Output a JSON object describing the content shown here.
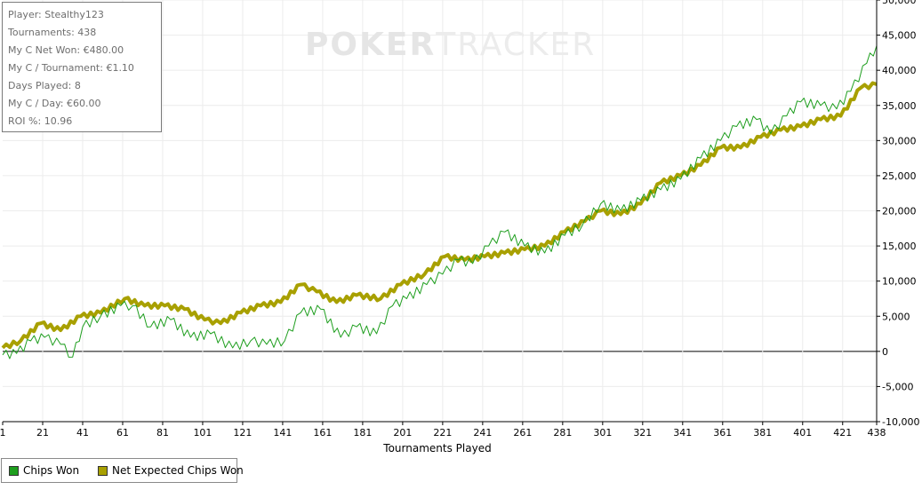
{
  "stats": [
    "Player: Stealthy123",
    "Tournaments: 438",
    "My C Net Won: €480.00",
    "My C / Tournament: €1.10",
    "Days Played: 8",
    "My C / Day: €60.00",
    "ROI %: 10.96"
  ],
  "watermark": {
    "part1": "POKER",
    "part2": "TRACKER"
  },
  "legend": [
    {
      "label": "Chips Won",
      "color": "#1e9e1e"
    },
    {
      "label": "Net Expected Chips Won",
      "color": "#a8a000"
    }
  ],
  "chart_data": {
    "type": "line",
    "xlabel": "Tournaments Played",
    "ylabel": "",
    "xlim": [
      1,
      438
    ],
    "ylim": [
      -10000,
      50000
    ],
    "x_ticks": [
      1,
      21,
      41,
      61,
      81,
      101,
      121,
      141,
      161,
      181,
      201,
      221,
      241,
      261,
      281,
      301,
      321,
      341,
      361,
      381,
      401,
      421,
      438
    ],
    "y_ticks": [
      -10000,
      -5000,
      0,
      5000,
      10000,
      15000,
      20000,
      25000,
      30000,
      35000,
      40000,
      45000,
      50000
    ],
    "y_tick_labels": [
      "-10,000",
      "-5,000",
      "0",
      "5,000",
      "10,000",
      "15,000",
      "20,000",
      "25,000",
      "30,000",
      "35,000",
      "40,000",
      "45,000",
      "50,000"
    ],
    "grid": true,
    "legend_position": "bottom-left",
    "series": [
      {
        "name": "Chips Won",
        "color": "#1e9e1e",
        "x": [
          1,
          8,
          15,
          22,
          30,
          36,
          41,
          50,
          60,
          66,
          75,
          85,
          95,
          105,
          116,
          125,
          133,
          142,
          150,
          160,
          170,
          178,
          188,
          196,
          203,
          213,
          221,
          229,
          236,
          244,
          252,
          262,
          272,
          282,
          291,
          300,
          310,
          320,
          330,
          340,
          350,
          360,
          368,
          378,
          385,
          393,
          400,
          410,
          418,
          425,
          433,
          438
        ],
        "y": [
          -500,
          -300,
          1500,
          2000,
          1000,
          -800,
          3500,
          5000,
          6500,
          6500,
          3500,
          4500,
          2000,
          2500,
          500,
          1500,
          1000,
          1500,
          5500,
          6000,
          2000,
          3500,
          2500,
          6500,
          7500,
          9500,
          11000,
          13000,
          12500,
          15000,
          17000,
          15000,
          14000,
          16500,
          18000,
          21000,
          20000,
          21500,
          23000,
          24500,
          27500,
          30000,
          32000,
          33000,
          31000,
          33500,
          35500,
          35000,
          34500,
          37000,
          41000,
          43500
        ]
      },
      {
        "name": "Net Expected Chips Won",
        "color": "#a8a000",
        "x": [
          1,
          10,
          20,
          30,
          40,
          50,
          62,
          72,
          82,
          92,
          102,
          110,
          120,
          130,
          140,
          150,
          158,
          168,
          178,
          190,
          200,
          212,
          222,
          232,
          242,
          252,
          262,
          272,
          282,
          292,
          300,
          310,
          320,
          330,
          340,
          350,
          360,
          370,
          380,
          390,
          400,
          410,
          420,
          430,
          438
        ],
        "y": [
          500,
          1500,
          4000,
          3000,
          5000,
          5500,
          7500,
          6500,
          6500,
          6000,
          4500,
          4000,
          5500,
          6500,
          7000,
          9500,
          8500,
          7000,
          8000,
          7500,
          9500,
          11000,
          13500,
          13000,
          13500,
          14000,
          14500,
          15000,
          17000,
          18500,
          20000,
          19500,
          21000,
          24000,
          25000,
          26500,
          29000,
          29000,
          30500,
          31500,
          32000,
          33000,
          33500,
          37500,
          38000
        ]
      }
    ]
  }
}
